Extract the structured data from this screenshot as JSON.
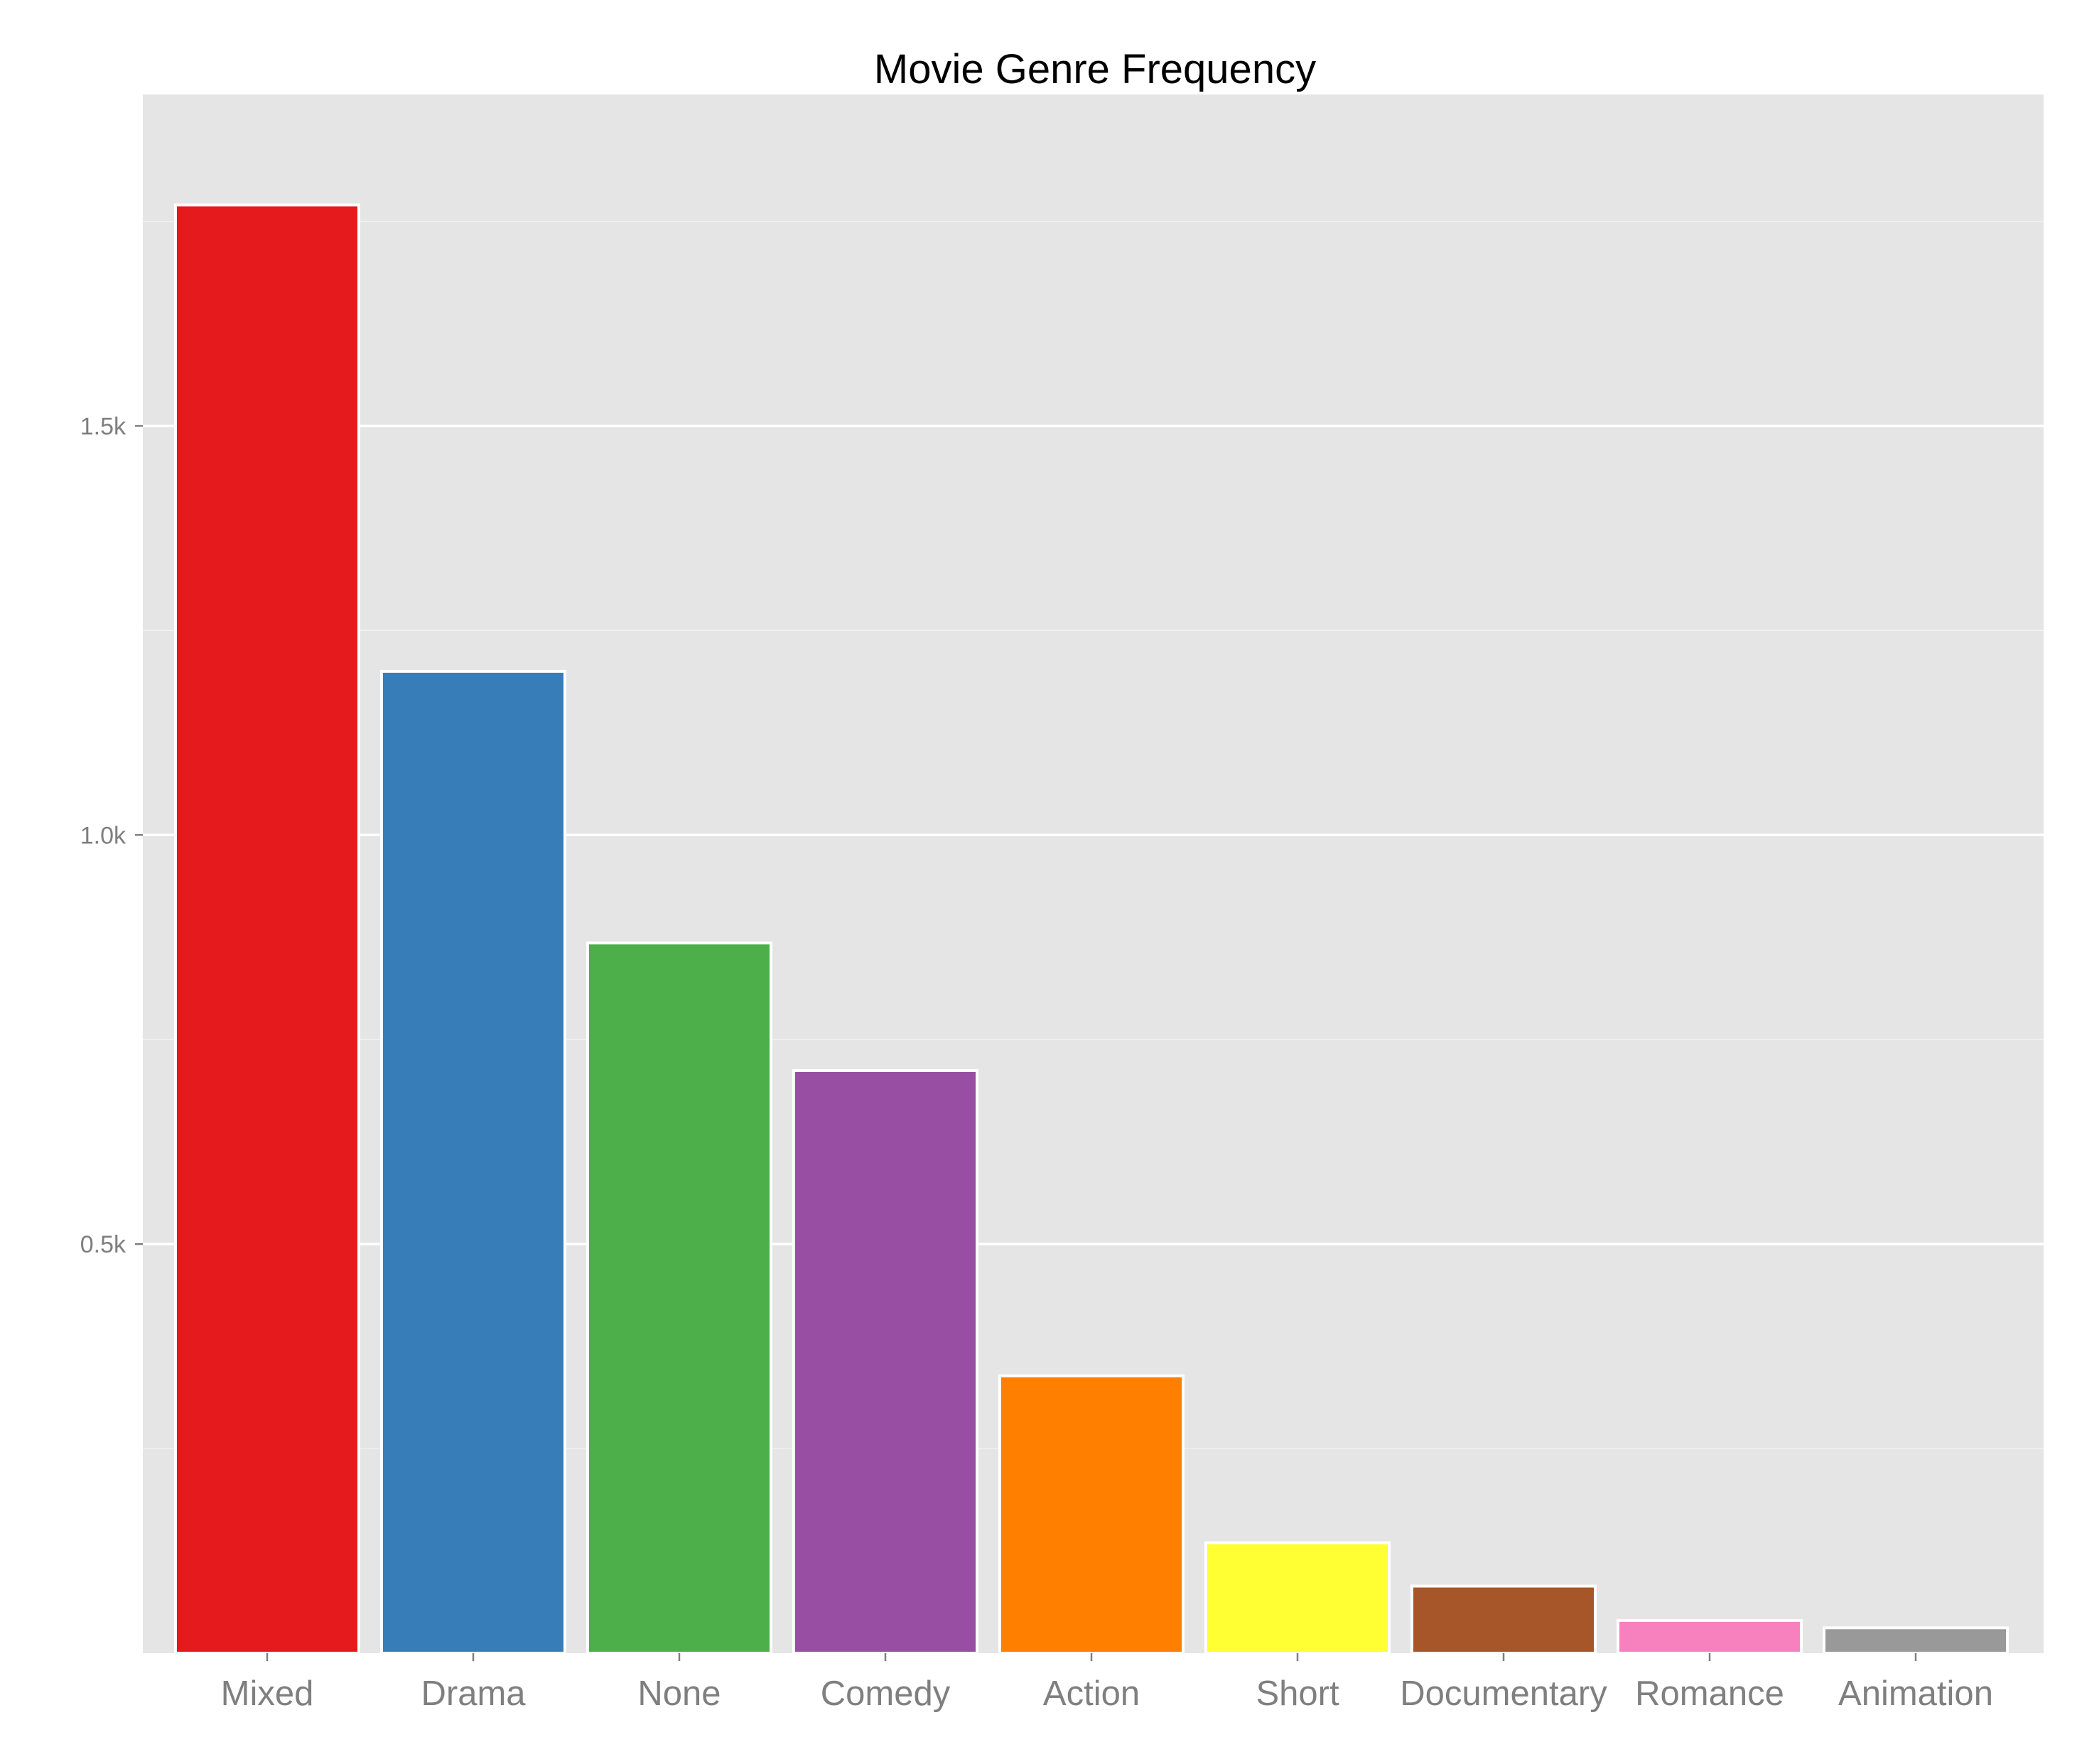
{
  "chart_data": {
    "type": "bar",
    "title": "Movie Genre Frequency",
    "xlabel": "",
    "ylabel": "",
    "categories": [
      "Mixed",
      "Drama",
      "None",
      "Comedy",
      "Action",
      "Short",
      "Documentary",
      "Romance",
      "Animation"
    ],
    "values": [
      1770,
      1200,
      868,
      712,
      339,
      135,
      82,
      40,
      31
    ],
    "colors": [
      "#e41a1c",
      "#377eb8",
      "#4daf4a",
      "#984ea3",
      "#ff7f00",
      "#ffff33",
      "#a65628",
      "#f781bf",
      "#999999"
    ],
    "ylim": [
      0,
      1905
    ],
    "yticks": [
      {
        "value": 500,
        "label": "0.5k"
      },
      {
        "value": 1000,
        "label": "1.0k"
      },
      {
        "value": 1500,
        "label": "1.5k"
      }
    ],
    "minor_gridlines": [
      250,
      750,
      1250,
      1750
    ],
    "grid": true,
    "legend": "none",
    "panel_background": "#e5e5e5",
    "gridline_color": "#ffffff"
  }
}
